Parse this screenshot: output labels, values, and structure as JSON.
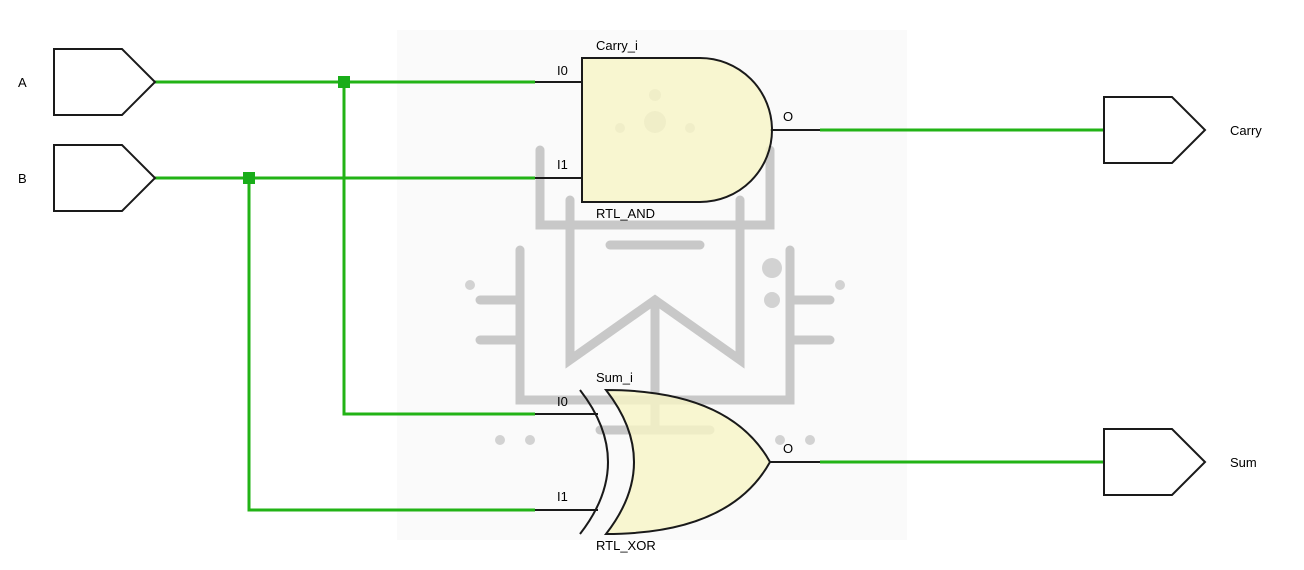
{
  "diagram": {
    "title": "",
    "inputs": [
      {
        "name": "A"
      },
      {
        "name": "B"
      }
    ],
    "outputs": [
      {
        "name": "Carry"
      },
      {
        "name": "Sum"
      }
    ],
    "gates": [
      {
        "instance": "Carry_i",
        "type": "RTL_AND",
        "pins": {
          "in0": "I0",
          "in1": "I1",
          "out": "O"
        }
      },
      {
        "instance": "Sum_i",
        "type": "RTL_XOR",
        "pins": {
          "in0": "I0",
          "in1": "I1",
          "out": "O"
        }
      }
    ],
    "connections": [
      {
        "from": "A",
        "to": [
          "Carry_i.I0",
          "Sum_i.I0"
        ]
      },
      {
        "from": "B",
        "to": [
          "Carry_i.I1",
          "Sum_i.I1"
        ]
      },
      {
        "from": "Carry_i.O",
        "to": [
          "Carry"
        ]
      },
      {
        "from": "Sum_i.O",
        "to": [
          "Sum"
        ]
      }
    ],
    "colors": {
      "wire": "#22b316",
      "stub": "#1a1a1a",
      "gate_fill": "#f7f5c6",
      "gate_stroke": "#1a1a1a",
      "port_fill": "#ffffff",
      "junction": "#19ad19"
    }
  }
}
